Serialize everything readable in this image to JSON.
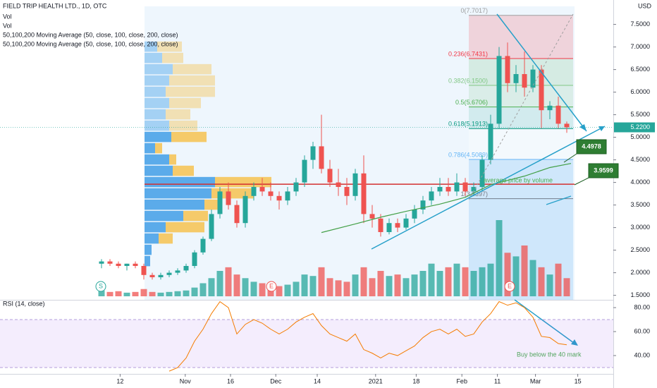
{
  "chart_data": {
    "type": "candlestick",
    "title": "FIELD TRIP HEALTH LTD., 1D, OTC",
    "legend": [
      "Vol",
      "Vol",
      "50,100,200 Moving Average (50, close, 100, close, 200, close)",
      "50,100,200 Moving Average (50, close, 100, close, 200, close)"
    ],
    "currency": "USD",
    "last_price": {
      "value": 5.22,
      "label": "5.2200"
    },
    "up_color": "#26a69a",
    "down_color": "#ef5350",
    "xlim": [
      0,
      72.5
    ],
    "ylim": [
      1.4,
      7.9
    ],
    "xticks": [
      {
        "value": 14.2,
        "label": "12"
      },
      {
        "value": 21.9,
        "label": "Nov"
      },
      {
        "value": 27.25,
        "label": "16"
      },
      {
        "value": 32.6,
        "label": "Dec"
      },
      {
        "value": 37.5,
        "label": "14"
      },
      {
        "value": 44.4,
        "label": "2021"
      },
      {
        "value": 49.2,
        "label": "18"
      },
      {
        "value": 54.6,
        "label": "Feb"
      },
      {
        "value": 58.8,
        "label": "11"
      },
      {
        "value": 63.3,
        "label": "Mar"
      },
      {
        "value": 68.3,
        "label": "15"
      }
    ],
    "yticks": [
      {
        "value": 1.5,
        "label": "1.5000"
      },
      {
        "value": 2,
        "label": "2.0000"
      },
      {
        "value": 2.5,
        "label": "2.5000"
      },
      {
        "value": 3,
        "label": "3.0000"
      },
      {
        "value": 3.5,
        "label": "3.5000"
      },
      {
        "value": 4,
        "label": "4.0000"
      },
      {
        "value": 4.5,
        "label": "4.5000"
      },
      {
        "value": 5,
        "label": "5.0000"
      },
      {
        "value": 5.5,
        "label": "5.5000"
      },
      {
        "value": 6,
        "label": "6.0000"
      },
      {
        "value": 6.5,
        "label": "6.5000"
      },
      {
        "value": 7,
        "label": "7.0000"
      },
      {
        "value": 7.5,
        "label": "7.5000"
      }
    ],
    "x": [
      12,
      13,
      14,
      15,
      16,
      17,
      18,
      19,
      20,
      21,
      22,
      23,
      24,
      25,
      26,
      27,
      28,
      29,
      30,
      31,
      32,
      33,
      34,
      35,
      36,
      37,
      38,
      39,
      40,
      41,
      42,
      43,
      44,
      45,
      46,
      47,
      48,
      49,
      50,
      51,
      52,
      53,
      54,
      55,
      56,
      57,
      58,
      59,
      60,
      61,
      62,
      63,
      64,
      65,
      66,
      67
    ],
    "open": [
      2.2,
      2.25,
      2.2,
      2.15,
      2.2,
      2.15,
      1.95,
      1.9,
      1.95,
      2.0,
      2.05,
      2.15,
      2.45,
      2.75,
      3.3,
      3.8,
      3.5,
      3.1,
      3.7,
      3.9,
      3.8,
      3.7,
      3.6,
      3.8,
      4.0,
      4.5,
      4.8,
      4.3,
      4.0,
      3.9,
      3.7,
      4.2,
      3.3,
      3.2,
      2.9,
      3.1,
      3.0,
      3.2,
      3.4,
      3.6,
      3.8,
      3.9,
      3.8,
      4.0,
      3.8,
      3.9,
      4.5,
      5.3,
      6.8,
      6.2,
      6.4,
      6.1,
      6.5,
      5.6,
      5.7,
      5.3
    ],
    "high": [
      2.3,
      2.3,
      2.25,
      2.2,
      2.25,
      2.2,
      2.0,
      2.0,
      2.05,
      2.1,
      2.2,
      2.5,
      2.8,
      3.4,
      3.9,
      4.0,
      3.6,
      3.8,
      4.0,
      4.1,
      4.0,
      3.8,
      3.9,
      4.1,
      4.6,
      4.9,
      5.5,
      4.5,
      4.3,
      4.1,
      4.3,
      4.6,
      3.5,
      3.3,
      3.2,
      3.2,
      3.3,
      3.5,
      3.7,
      3.9,
      4.1,
      4.1,
      4.2,
      4.1,
      4.0,
      4.6,
      5.5,
      7.0,
      7.1,
      6.6,
      6.9,
      6.6,
      6.6,
      5.8,
      5.9,
      5.35
    ],
    "low": [
      2.1,
      2.15,
      2.1,
      2.05,
      2.1,
      1.85,
      1.85,
      1.85,
      1.9,
      1.95,
      2.0,
      2.1,
      2.4,
      2.7,
      3.2,
      3.4,
      3.0,
      3.0,
      3.6,
      3.7,
      3.6,
      3.4,
      3.5,
      3.7,
      3.9,
      4.3,
      4.2,
      3.9,
      3.7,
      3.5,
      3.6,
      3.1,
      3.0,
      2.8,
      2.85,
      2.9,
      2.95,
      3.1,
      3.3,
      3.5,
      3.7,
      3.7,
      3.7,
      3.7,
      3.7,
      3.8,
      4.4,
      5.2,
      6.0,
      6.0,
      5.9,
      6.0,
      5.2,
      5.4,
      5.2,
      5.1
    ],
    "close": [
      2.25,
      2.2,
      2.15,
      2.2,
      2.15,
      1.95,
      1.9,
      1.95,
      2.0,
      2.05,
      2.15,
      2.45,
      2.75,
      3.3,
      3.8,
      3.5,
      3.1,
      3.7,
      3.9,
      3.8,
      3.7,
      3.6,
      3.8,
      4.0,
      4.5,
      4.8,
      4.3,
      4.0,
      3.9,
      3.7,
      4.2,
      3.3,
      3.2,
      2.9,
      3.1,
      3.0,
      3.2,
      3.4,
      3.6,
      3.8,
      3.9,
      3.8,
      4.0,
      3.8,
      3.9,
      4.5,
      5.3,
      6.8,
      6.2,
      6.4,
      6.1,
      6.5,
      5.6,
      5.7,
      5.3,
      5.22
    ],
    "volume": [
      8,
      6,
      7,
      5,
      6,
      10,
      6,
      5,
      6,
      7,
      8,
      12,
      18,
      25,
      35,
      40,
      30,
      25,
      20,
      18,
      15,
      14,
      16,
      20,
      30,
      28,
      40,
      25,
      22,
      20,
      30,
      40,
      25,
      35,
      28,
      30,
      25,
      30,
      35,
      45,
      35,
      40,
      45,
      40,
      35,
      40,
      45,
      105,
      60,
      55,
      70,
      50,
      40,
      30,
      45,
      25
    ],
    "ma": {
      "color": "#43a047",
      "x": [
        38,
        42,
        45,
        48,
        52,
        55,
        58,
        62,
        65,
        67.5
      ],
      "values": [
        2.89,
        3.08,
        3.23,
        3.36,
        3.52,
        3.67,
        3.95,
        4.14,
        4.33,
        4.42
      ]
    },
    "volume_profile": {
      "up_color": "#4aa3e8",
      "down_color": "#f5c55a",
      "prices": [
        7.0,
        6.75,
        6.5,
        6.25,
        6.0,
        5.75,
        5.5,
        5.25,
        5.0,
        4.75,
        4.5,
        4.25,
        4.0,
        3.75,
        3.5,
        3.25,
        3.0,
        2.75,
        2.5,
        2.25
      ],
      "up": [
        18,
        25,
        40,
        35,
        30,
        35,
        30,
        35,
        38,
        15,
        35,
        40,
        100,
        95,
        85,
        55,
        30,
        20,
        10,
        8
      ],
      "down": [
        35,
        30,
        55,
        65,
        70,
        45,
        35,
        40,
        50,
        10,
        10,
        30,
        80,
        60,
        20,
        35,
        55,
        20,
        0,
        0
      ]
    },
    "poc": 3.9599,
    "fib": [
      {
        "value": 7.7017,
        "label": "0(7.7017)",
        "color": "#9e9e9e"
      },
      {
        "value": 6.7431,
        "label": "0.236(6.7431)",
        "color": "#f23645"
      },
      {
        "value": 6.15,
        "label": "0.382(6.1500)",
        "color": "#81c784"
      },
      {
        "value": 5.6706,
        "label": "0.5(5.6706)",
        "color": "#4caf50"
      },
      {
        "value": 5.1913,
        "label": "0.618(5.1913)",
        "color": "#089981"
      },
      {
        "value": 4.5089,
        "label": "0.786(4.5089)",
        "color": "#64b5f6"
      },
      {
        "value": 3.6397,
        "label": "1(3.6397)",
        "color": "#787b86"
      }
    ],
    "annotations": {
      "avg_text": "average price by volume",
      "box1": 4.4978,
      "box2": 3.9599,
      "rsi_text": "Buy below the 40 mark"
    },
    "events": [
      "S",
      "E",
      "E"
    ],
    "rsi": {
      "title": "RSI (14, close)",
      "color": "#f57c00",
      "ylim": [
        20.6,
        86.5
      ],
      "band": [
        30,
        70
      ],
      "yticks": [
        {
          "value": 40,
          "label": "40.00"
        },
        {
          "value": 60,
          "label": "60.00"
        },
        {
          "value": 80,
          "label": "80.00"
        }
      ],
      "values": [
        null,
        null,
        null,
        null,
        null,
        null,
        null,
        null,
        27,
        30,
        38,
        52,
        62,
        75,
        85,
        80,
        58,
        66,
        70,
        67,
        62,
        58,
        62,
        68,
        72,
        75,
        65,
        58,
        55,
        52,
        58,
        45,
        42,
        38,
        42,
        40,
        44,
        48,
        55,
        60,
        62,
        58,
        62,
        56,
        58,
        68,
        75,
        85,
        82,
        84,
        80,
        72,
        56,
        55,
        50,
        49
      ]
    }
  }
}
